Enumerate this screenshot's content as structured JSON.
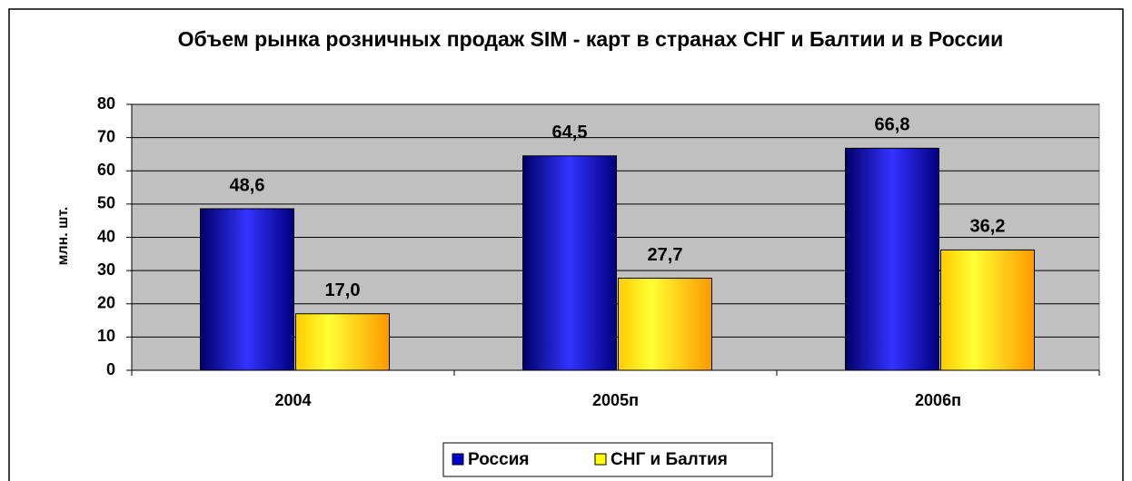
{
  "chart_data": {
    "type": "bar",
    "title": "Объем рынка розничных продаж SIM - карт в странах СНГ и Балтии и в России",
    "y_label": "млн. шт.",
    "categories": [
      "2004",
      "2005п",
      "2006п"
    ],
    "series": [
      {
        "name": "Россия",
        "color": "#0000cc",
        "values": [
          48.6,
          64.5,
          66.8
        ],
        "value_labels": [
          "48,6",
          "64,5",
          "66,8"
        ]
      },
      {
        "name": "СНГ и Балтия",
        "color": "#ffff00",
        "values": [
          17.0,
          27.7,
          36.2
        ],
        "value_labels": [
          "17,0",
          "27,7",
          "36,2"
        ]
      }
    ],
    "ylim": [
      0,
      80
    ],
    "yticks": [
      0,
      10,
      20,
      30,
      40,
      50,
      60,
      70,
      80
    ],
    "grid": true,
    "legend": "bottom"
  }
}
